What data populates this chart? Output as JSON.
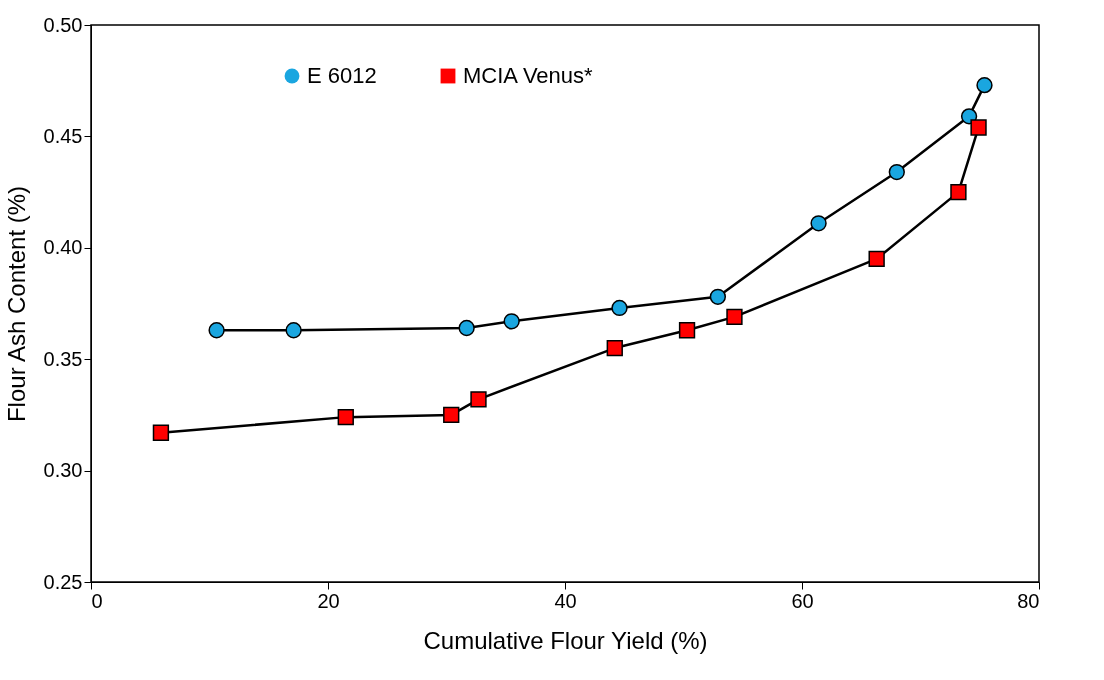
{
  "chart_data": {
    "type": "line",
    "xlabel": "Cumulative Flour Yield (%)",
    "ylabel": "Flour Ash Content (%)",
    "xlim": [
      0,
      80
    ],
    "xticks": [
      0,
      20,
      40,
      60,
      80
    ],
    "ylim": [
      0.25,
      0.5
    ],
    "yticks": [
      {
        "value": 0.25,
        "label": "0.25"
      },
      {
        "value": 0.3,
        "label": "0.30"
      },
      {
        "value": 0.35,
        "label": "0.35"
      },
      {
        "value": 0.4,
        "label": "0.40"
      },
      {
        "value": 0.45,
        "label": "0.45"
      },
      {
        "value": 0.5,
        "label": "0.50"
      }
    ],
    "grid": false,
    "legend": "top",
    "line_style": "solid",
    "series": [
      {
        "name": "E 6012",
        "color": "#1aa6e0",
        "marker": "circle",
        "x": [
          10.6,
          17.1,
          31.7,
          35.5,
          44.6,
          52.9,
          61.4,
          68.0,
          74.1,
          75.4
        ],
        "values": [
          0.363,
          0.363,
          0.364,
          0.367,
          0.373,
          0.378,
          0.411,
          0.434,
          0.459,
          0.473
        ]
      },
      {
        "name": "MCIA Venus*",
        "color": "#ff0000",
        "marker": "square",
        "x": [
          5.9,
          21.5,
          30.4,
          32.7,
          44.2,
          50.3,
          54.3,
          66.3,
          73.2,
          74.9
        ],
        "values": [
          0.317,
          0.324,
          0.325,
          0.332,
          0.355,
          0.363,
          0.369,
          0.395,
          0.425,
          0.454
        ]
      }
    ]
  }
}
